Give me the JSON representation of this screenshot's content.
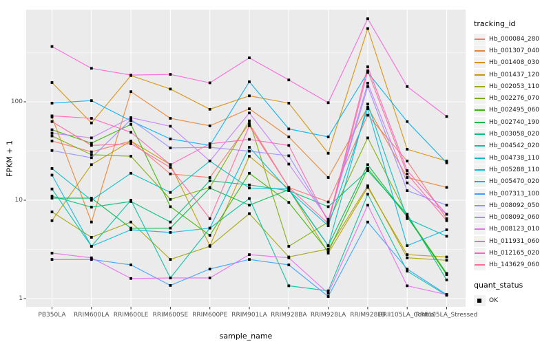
{
  "chart_data": {
    "type": "line",
    "title": "",
    "xlabel": "sample_name",
    "ylabel": "FPKM + 1",
    "y_scale": "log10",
    "y_ticks": [
      1,
      10,
      100
    ],
    "y_minor_ticks": [
      3.162,
      31.623,
      316.228
    ],
    "ylim": [
      1,
      900
    ],
    "grid": true,
    "legend_position": "right",
    "legend_title": "tracking_id",
    "quant_legend_title": "quant_status",
    "quant_legend_value": "OK",
    "point_shape": "filled-black-square",
    "categories": [
      "PB350LA",
      "RRIM600LA",
      "RRIM600LE",
      "RRIM600SE",
      "RRIM600PE",
      "RRIM901LA",
      "RRIM928BA",
      "RRIM928LA",
      "RRIM928LB",
      "RRII105LA_Control",
      "RRII105LA_Stressed"
    ],
    "series": [
      {
        "name": "Hb_000084_280",
        "color": "#F8766D",
        "values": [
          40,
          31,
          40,
          18.5,
          17,
          60,
          13.5,
          9.6,
          73,
          25,
          6.5
        ]
      },
      {
        "name": "Hb_001307_040",
        "color": "#EA8331",
        "values": [
          70,
          6.0,
          127,
          68,
          57,
          85,
          44,
          17,
          88,
          17,
          13.5
        ]
      },
      {
        "name": "Hb_001408_030",
        "color": "#D89000",
        "values": [
          157,
          61,
          185,
          135,
          84,
          115,
          97,
          30,
          556,
          33,
          25
        ]
      },
      {
        "name": "Hb_001437_120",
        "color": "#C09B00",
        "values": [
          6.2,
          23,
          40,
          23,
          3.45,
          28,
          13,
          2.9,
          13.5,
          2.8,
          2.65
        ]
      },
      {
        "name": "Hb_002053_110",
        "color": "#A3A500",
        "values": [
          7.6,
          4.2,
          6.0,
          2.5,
          3.4,
          7.3,
          2.65,
          3.2,
          14,
          2.6,
          2.45
        ]
      },
      {
        "name": "Hb_002276_070",
        "color": "#7CAE00",
        "values": [
          45,
          29,
          28,
          10.2,
          13.5,
          64,
          3.4,
          6.0,
          43,
          7.0,
          1.8
        ]
      },
      {
        "name": "Hb_002495_060",
        "color": "#39B600",
        "values": [
          52,
          38,
          59,
          8.6,
          4.4,
          18.8,
          9.5,
          3.0,
          21,
          6.8,
          1.75
        ]
      },
      {
        "name": "Hb_002740_190",
        "color": "#00BB4E",
        "values": [
          10.5,
          10.5,
          5.2,
          5.2,
          13.3,
          8.9,
          12.8,
          3.45,
          23,
          6.8,
          1.8
        ]
      },
      {
        "name": "Hb_003058_020",
        "color": "#00BF7D",
        "values": [
          11,
          8.5,
          9.7,
          6.0,
          15.8,
          14.3,
          12.5,
          8.6,
          20,
          7.2,
          1.55
        ]
      },
      {
        "name": "Hb_004542_020",
        "color": "#00C1A3",
        "values": [
          13,
          3.4,
          10,
          1.62,
          5.2,
          10.4,
          1.35,
          1.2,
          11.5,
          1.9,
          1.08
        ]
      },
      {
        "name": "Hb_004738_110",
        "color": "#00BFC4",
        "values": [
          21,
          10,
          18.8,
          12,
          25,
          13.3,
          13,
          3.45,
          95,
          6.5,
          4.3
        ]
      },
      {
        "name": "Hb_005288_110",
        "color": "#00BAE0",
        "values": [
          18,
          3.4,
          5.0,
          4.7,
          5.2,
          34.5,
          12.5,
          5.5,
          85,
          3.45,
          5.0
        ]
      },
      {
        "name": "Hb_005470_020",
        "color": "#00B0F6",
        "values": [
          97,
          103,
          64,
          42,
          36,
          160,
          53,
          44,
          199,
          63,
          24
        ]
      },
      {
        "name": "Hb_007313_100",
        "color": "#35A2FF",
        "values": [
          2.5,
          2.5,
          2.2,
          1.36,
          2.0,
          2.5,
          2.2,
          1.05,
          6.0,
          2.0,
          1.1
        ]
      },
      {
        "name": "Hb_008092_050",
        "color": "#9590FF",
        "values": [
          32,
          27,
          66,
          34,
          34.5,
          31.5,
          28.3,
          6.2,
          143,
          12.5,
          8.9
        ]
      },
      {
        "name": "Hb_008092_060",
        "color": "#C77CFF",
        "values": [
          48,
          43,
          69,
          56.5,
          25,
          77,
          23.3,
          6.4,
          155,
          15,
          7.2
        ]
      },
      {
        "name": "Hb_008123_010",
        "color": "#E76BF3",
        "values": [
          2.9,
          2.6,
          1.6,
          1.62,
          1.62,
          2.8,
          2.6,
          1.13,
          8.9,
          1.35,
          1.1
        ]
      },
      {
        "name": "Hb_011931_060",
        "color": "#FA62DB",
        "values": [
          365,
          219,
          187,
          190,
          156,
          280,
          167,
          98,
          700,
          143,
          71
        ]
      },
      {
        "name": "Hb_012165_020",
        "color": "#FF62BC",
        "values": [
          72,
          68,
          49,
          23,
          37.5,
          41.5,
          36,
          6.0,
          227,
          20,
          7.2
        ]
      },
      {
        "name": "Hb_143629_060",
        "color": "#FF6A98",
        "values": [
          63,
          36,
          37.5,
          21.5,
          6.5,
          57,
          13.5,
          5.8,
          206,
          18.5,
          6.2
        ]
      }
    ],
    "layout": {
      "panel_bg": "#EBEBEB",
      "grid_color": "#FFFFFF",
      "tick_text_color": "#4D4D4D",
      "point_color": "#000000",
      "key_bg": "#F2F2F2"
    }
  }
}
